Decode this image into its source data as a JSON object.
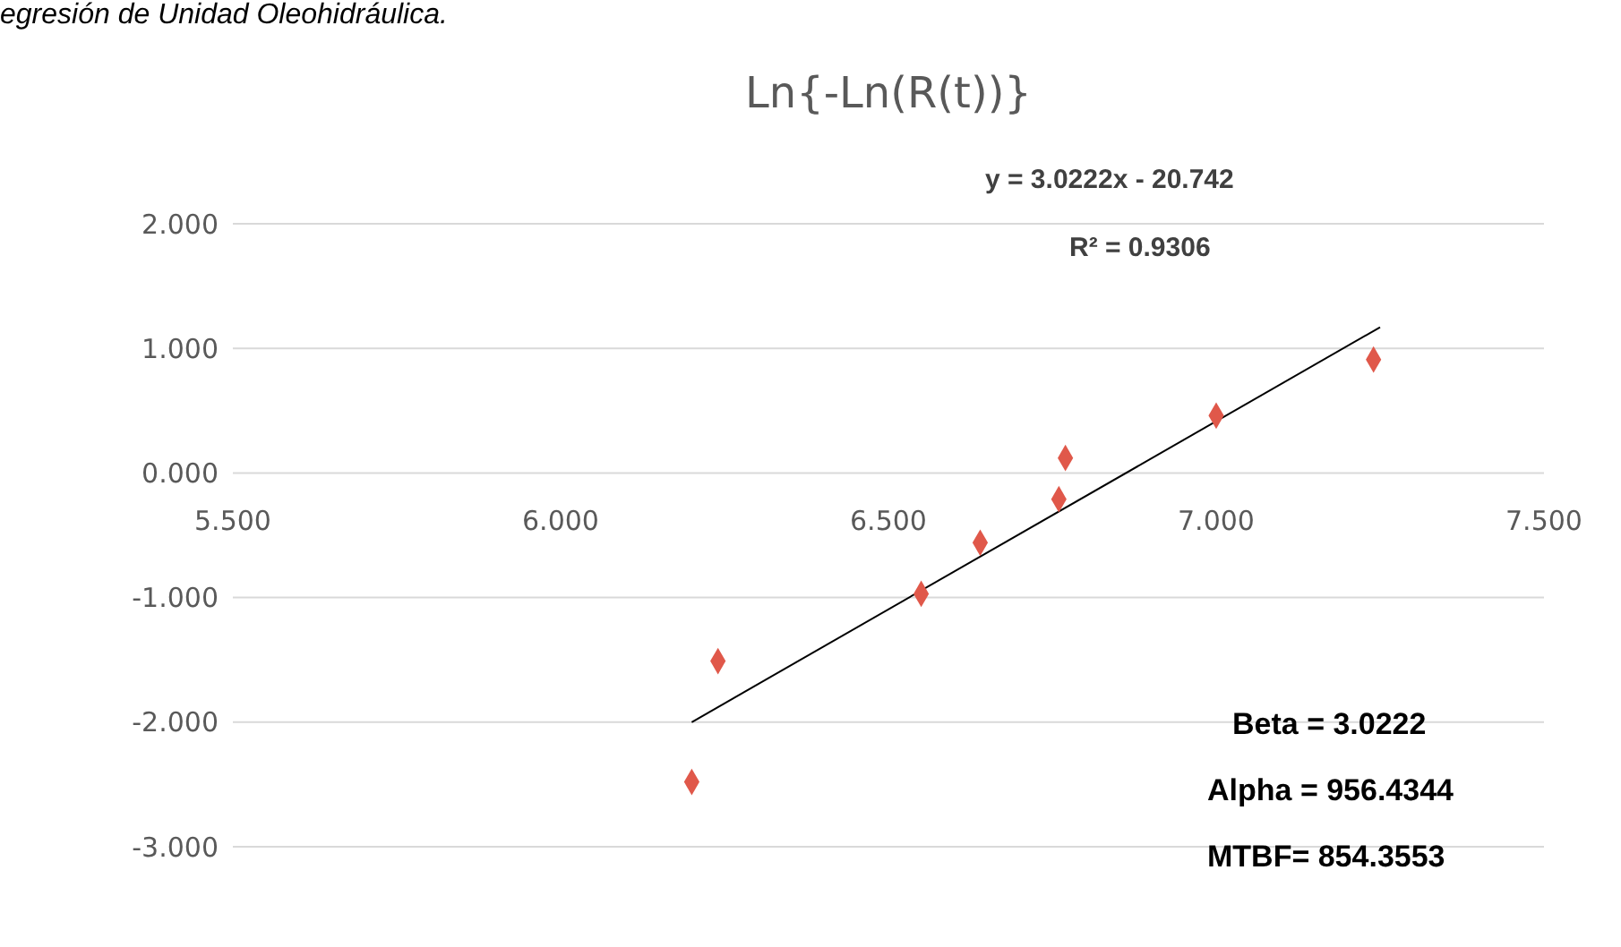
{
  "chart_data": {
    "type": "scatter",
    "title": "Ln{-Ln(R(t))}",
    "annotations": [
      "egresión de Unidad Oleohidráulica.",
      "y = 3.0222x - 20.742",
      "R² = 0.9306",
      "Beta = 3.0222",
      "Alpha = 956.4344",
      "MTBF= 854.3553"
    ],
    "series": [
      {
        "marker": "diamond",
        "color": "#e0584a",
        "x": [
          6.2,
          6.24,
          6.55,
          6.64,
          6.76,
          6.77,
          7.0,
          7.24
        ],
        "values": [
          -2.48,
          -1.51,
          -0.97,
          -0.56,
          -0.21,
          0.12,
          0.46,
          0.91
        ]
      },
      {
        "type": "line",
        "marker": "none",
        "color": "#000000",
        "x": [
          6.2,
          7.25
        ],
        "values": [
          -2.0,
          1.17
        ]
      }
    ],
    "xlim": [
      5.5,
      7.5
    ],
    "xticks": [
      {
        "value": 5.5,
        "label": "5.500"
      },
      {
        "value": 6,
        "label": "6.000"
      },
      {
        "value": 6.5,
        "label": "6.500"
      },
      {
        "value": 7,
        "label": "7.000"
      },
      {
        "value": 7.5,
        "label": "7.500"
      }
    ],
    "ylim": [
      -3,
      2
    ],
    "yticks": [
      {
        "value": -3,
        "label": "-3.000"
      },
      {
        "value": -2,
        "label": "-2.000"
      },
      {
        "value": -1,
        "label": "-1.000"
      },
      {
        "value": 0,
        "label": "0.000"
      },
      {
        "value": 1,
        "label": "1.000"
      },
      {
        "value": 2,
        "label": "2.000"
      }
    ],
    "grid": "y",
    "line_style": "solid"
  }
}
